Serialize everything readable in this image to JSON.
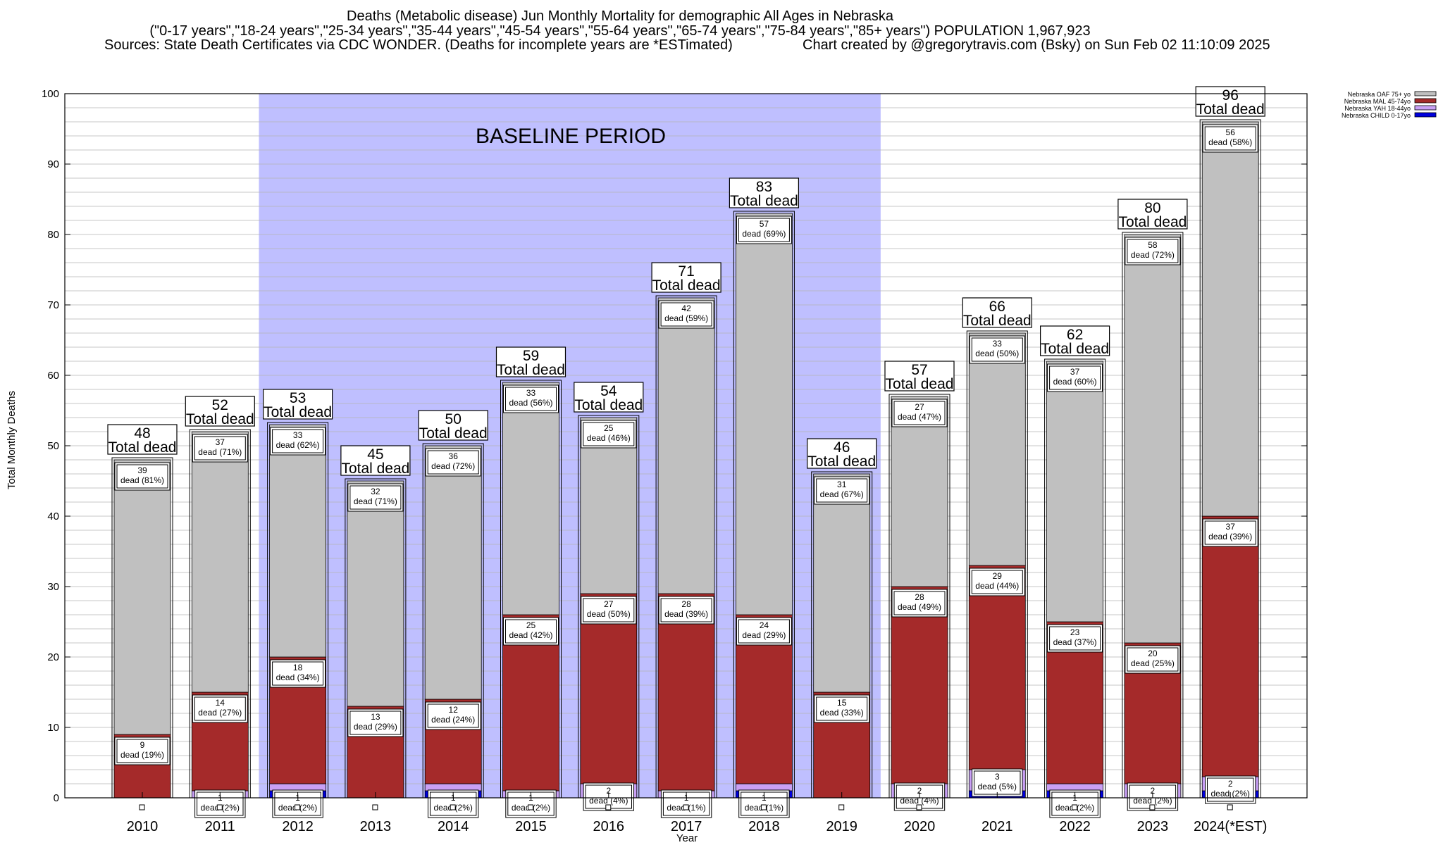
{
  "header": {
    "title": "Deaths (Metabolic disease) Jun Monthly Mortality for demographic All Ages in Nebraska",
    "subtitle": "(\"0-17 years\",\"18-24 years\",\"25-34 years\",\"35-44 years\",\"45-54 years\",\"55-64 years\",\"65-74 years\",\"75-84 years\",\"85+ years\") POPULATION 1,967,923",
    "sources": "Sources: State Death Certificates via CDC WONDER. (Deaths for incomplete years are *ESTimated)",
    "credit": "Chart created by @gregorytravis.com (Bsky) on Sun Feb 02 11:10:09 2025"
  },
  "chart_data": {
    "type": "bar",
    "stacked": true,
    "xlabel": "Year",
    "ylabel": "Total Monthly Deaths",
    "ylim": [
      0,
      100
    ],
    "yticks": [
      0,
      10,
      20,
      30,
      40,
      50,
      60,
      70,
      80,
      90,
      100
    ],
    "grid": true,
    "legend_position": "top-right",
    "baseline_label": "BASELINE PERIOD",
    "baseline_range": [
      "2012",
      "2019"
    ],
    "total_label": "Total dead",
    "categories": [
      "2010",
      "2011",
      "2012",
      "2013",
      "2014",
      "2015",
      "2016",
      "2017",
      "2018",
      "2019",
      "2020",
      "2021",
      "2022",
      "2023",
      "2024(*EST)"
    ],
    "totals": [
      48,
      52,
      53,
      45,
      50,
      59,
      54,
      71,
      83,
      46,
      57,
      66,
      62,
      80,
      96
    ],
    "series": [
      {
        "name": "Nebraska CHILD 0-17yo",
        "color": "#0000dd",
        "values": [
          0,
          0,
          1,
          0,
          1,
          0,
          0,
          0,
          1,
          0,
          0,
          1,
          1,
          0,
          1
        ],
        "labels": [
          null,
          null,
          null,
          null,
          null,
          null,
          null,
          null,
          null,
          null,
          null,
          null,
          null,
          null,
          null
        ]
      },
      {
        "name": "Nebraska YAH 18-44yo",
        "color": "#c9a0f5",
        "values": [
          0,
          1,
          1,
          0,
          1,
          1,
          2,
          1,
          1,
          0,
          2,
          3,
          1,
          2,
          2
        ],
        "labels": [
          null,
          "1\ndead (2%)",
          "1\ndead (2%)",
          null,
          "1\ndead (2%)",
          "1\ndead (2%)",
          "2\ndead (4%)",
          "1\ndead (1%)",
          "1\ndead (1%)",
          null,
          "2\ndead (4%)",
          "3\ndead (5%)",
          "1\ndead (2%)",
          "2\ndead (2%)",
          "2\ndead (2%)"
        ]
      },
      {
        "name": "Nebraska MAL 45-74yo",
        "color": "#a52a2a",
        "values": [
          9,
          14,
          18,
          13,
          12,
          25,
          27,
          28,
          24,
          15,
          28,
          29,
          23,
          20,
          37
        ],
        "labels": [
          "9\ndead (19%)",
          "14\ndead (27%)",
          "18\ndead (34%)",
          "13\ndead (29%)",
          "12\ndead (24%)",
          "25\ndead (42%)",
          "27\ndead (50%)",
          "28\ndead (39%)",
          "24\ndead (29%)",
          "15\ndead (33%)",
          "28\ndead (49%)",
          "29\ndead (44%)",
          "23\ndead (37%)",
          "20\ndead (25%)",
          "37\ndead (39%)"
        ]
      },
      {
        "name": "Nebraska OAF 75+ yo",
        "color": "#c0c0c0",
        "values": [
          39,
          37,
          33,
          32,
          36,
          33,
          25,
          42,
          57,
          31,
          27,
          33,
          37,
          58,
          56
        ],
        "labels": [
          "39\ndead (81%)",
          "37\ndead (71%)",
          "33\ndead (62%)",
          "32\ndead (71%)",
          "36\ndead (72%)",
          "33\ndead (56%)",
          "25\ndead (46%)",
          "42\ndead (59%)",
          "57\ndead (69%)",
          "31\ndead (67%)",
          "27\ndead (47%)",
          "33\ndead (50%)",
          "37\ndead (60%)",
          "58\ndead (72%)",
          "56\ndead (58%)"
        ]
      }
    ],
    "legend_order": [
      "Nebraska OAF 75+ yo",
      "Nebraska MAL 45-74yo",
      "Nebraska YAH 18-44yo",
      "Nebraska CHILD 0-17yo"
    ],
    "colors": {
      "baseline_shade": "#bfbfff",
      "plot_background": "#ffffff",
      "grid": "#b4b4b4"
    }
  }
}
